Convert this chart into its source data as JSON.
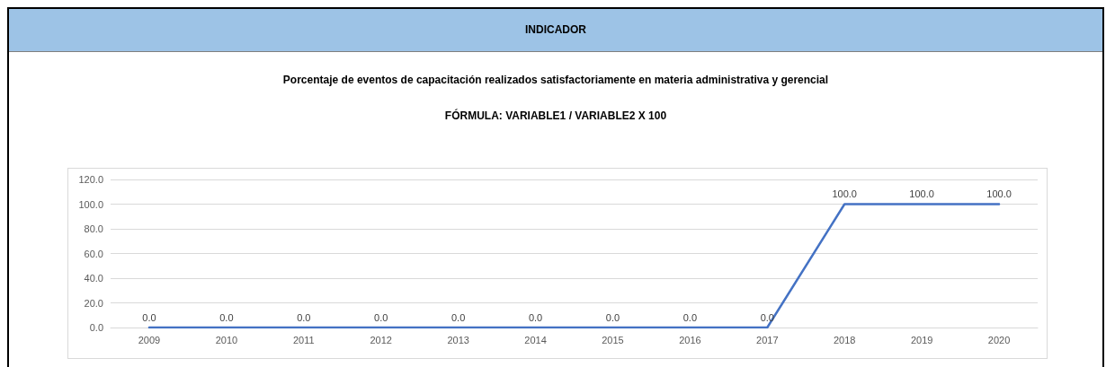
{
  "chart_data": {
    "type": "line",
    "title": "INDICADOR",
    "subtitle": "Porcentaje de eventos de capacitación realizados satisfactoriamente en materia administrativa y gerencial",
    "annotations": [
      "FÓRMULA: VARIABLE1 / VARIABLE2 X 100"
    ],
    "categories": [
      "2009",
      "2010",
      "2011",
      "2012",
      "2013",
      "2014",
      "2015",
      "2016",
      "2017",
      "2018",
      "2019",
      "2020"
    ],
    "series": [
      {
        "color": "#4472c4",
        "values": [
          0,
          0,
          0,
          0,
          0,
          0,
          0,
          0,
          0,
          100,
          100,
          100
        ],
        "value_labels": [
          "0.0",
          "0.0",
          "0.0",
          "0.0",
          "0.0",
          "0.0",
          "0.0",
          "0.0",
          "0.0",
          "100.0",
          "100.0",
          "100.0"
        ]
      }
    ],
    "ylim": [
      0,
      120
    ],
    "yticks": [
      {
        "value": 0,
        "label": "0.0"
      },
      {
        "value": 20,
        "label": "20.0"
      },
      {
        "value": 40,
        "label": "40.0"
      },
      {
        "value": 60,
        "label": "60.0"
      },
      {
        "value": 80,
        "label": "80.0"
      },
      {
        "value": 100,
        "label": "100.0"
      },
      {
        "value": 120,
        "label": "120.0"
      }
    ],
    "grid": "y",
    "marker": "none",
    "line_style": "solid"
  }
}
